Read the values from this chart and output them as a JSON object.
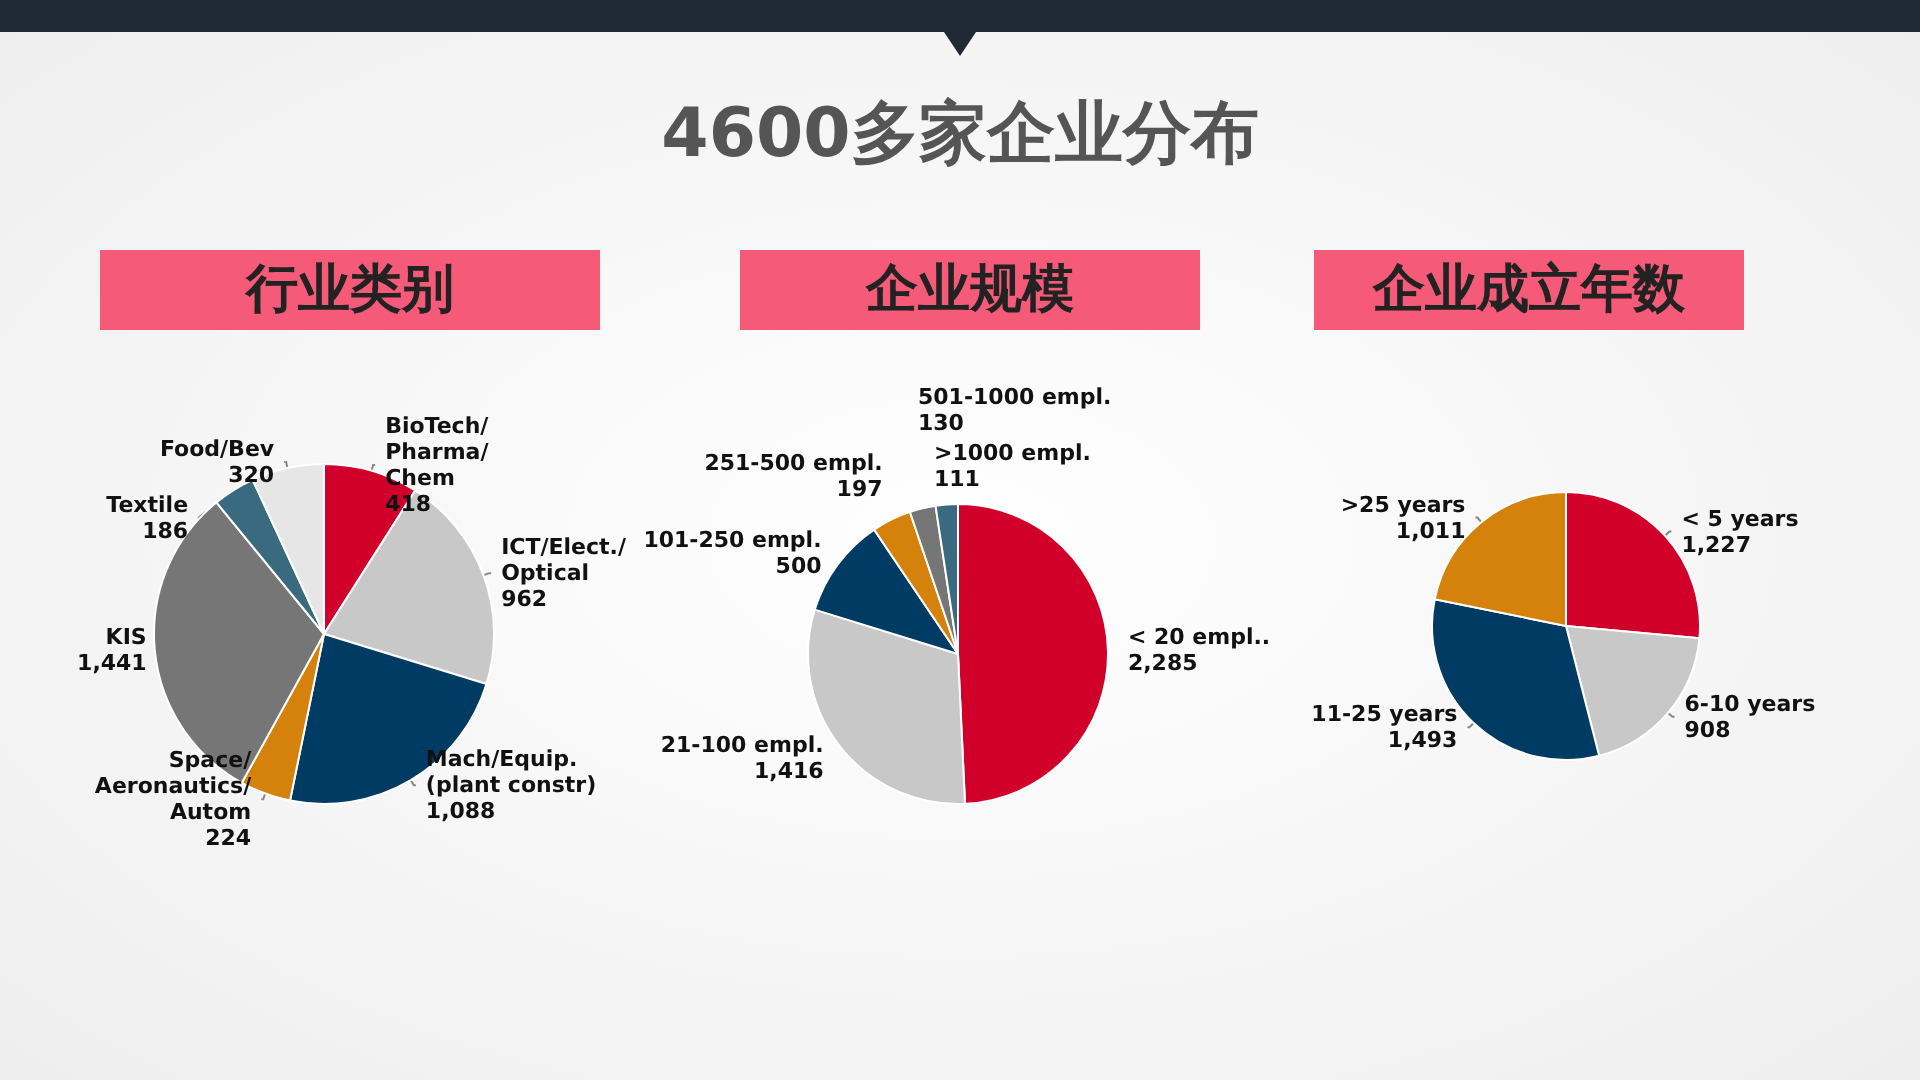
{
  "chart_data": [
    {
      "type": "pie",
      "title": "行业类别",
      "annotations": [
        "4600多家企业分布"
      ],
      "categories": [
        "BioTech/\nPharma/\nChem",
        "ICT/Elect./\nOptical",
        "Mach/Equip.\n(plant constr)",
        "Space/\nAeronautics/\nAutom",
        "KIS",
        "Textile",
        "Food/Bev"
      ],
      "values": [
        418,
        962,
        1088,
        224,
        1441,
        186,
        320
      ],
      "value_labels": [
        "418",
        "962",
        "1,088",
        "224",
        "1,441",
        "186",
        "320"
      ],
      "colors": [
        "#d0002a",
        "#c8c8c8",
        "#003b64",
        "#d4820c",
        "#767676",
        "#3a6a80",
        "#e6e6e6"
      ]
    },
    {
      "type": "pie",
      "title": "企业规模",
      "categories": [
        "< 20 empl..",
        "21-100 empl.",
        "101-250 empl.",
        "251-500 empl.",
        "501-1000 empl.",
        ">1000 empl."
      ],
      "values": [
        2285,
        1416,
        500,
        197,
        130,
        111
      ],
      "value_labels": [
        "2,285",
        "1,416",
        "500",
        "197",
        "130",
        "111"
      ],
      "colors": [
        "#d0002a",
        "#c8c8c8",
        "#003b64",
        "#d4820c",
        "#767676",
        "#3a6a80"
      ]
    },
    {
      "type": "pie",
      "title": "企业成立年数",
      "categories": [
        "< 5 years",
        "6-10 years",
        "11-25 years",
        ">25 years"
      ],
      "values": [
        1227,
        908,
        1493,
        1011
      ],
      "value_labels": [
        "1,227",
        "908",
        "1,493",
        "1,011"
      ],
      "colors": [
        "#d0002a",
        "#c8c8c8",
        "#003b64",
        "#d4820c"
      ]
    }
  ]
}
